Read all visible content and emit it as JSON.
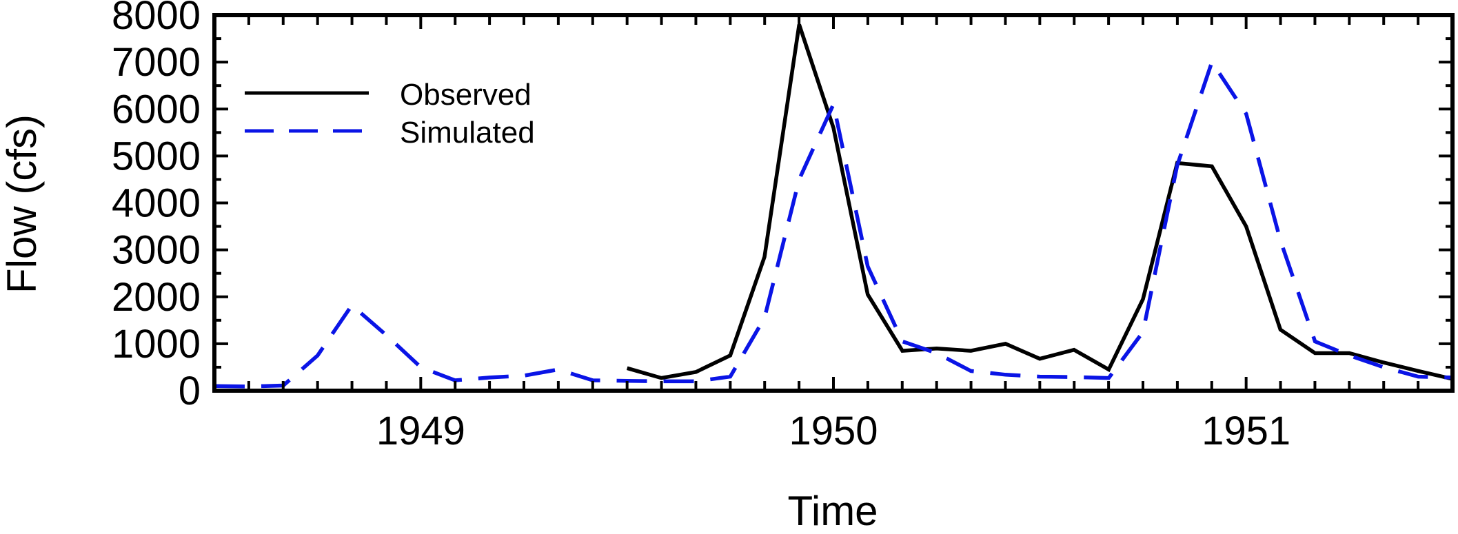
{
  "chart_data": {
    "type": "line",
    "title": "",
    "xlabel": "Time",
    "ylabel": "Flow (cfs)",
    "xlim": [
      1948.5,
      1951.5
    ],
    "ylim": [
      0,
      8000
    ],
    "y_ticks": [
      0,
      1000,
      2000,
      3000,
      4000,
      5000,
      6000,
      7000,
      8000
    ],
    "y_tick_labels": [
      "0",
      "1000",
      "2000",
      "3000",
      "4000",
      "5000",
      "6000",
      "7000",
      "8000"
    ],
    "x_ticks": [
      1949,
      1950,
      1951
    ],
    "x_tick_labels": [
      "1949",
      "1950",
      "1951"
    ],
    "grid": false,
    "legend_position": "top-left",
    "series": [
      {
        "name": "Observed",
        "color": "#000000",
        "dash": "solid",
        "x": [
          1949.5,
          1949.583,
          1949.667,
          1949.75,
          1949.833,
          1949.917,
          1950.0,
          1950.083,
          1950.167,
          1950.25,
          1950.333,
          1950.417,
          1950.5,
          1950.583,
          1950.667,
          1950.75,
          1950.833,
          1950.917,
          1951.0,
          1951.083,
          1951.167,
          1951.25,
          1951.333,
          1951.417,
          1951.5
        ],
        "y": [
          480,
          270,
          400,
          750,
          2850,
          7800,
          5600,
          2050,
          850,
          900,
          850,
          1000,
          680,
          870,
          450,
          1950,
          4850,
          4780,
          3500,
          1300,
          800,
          800,
          600,
          420,
          250
        ]
      },
      {
        "name": "Simulated",
        "color": "#0a14e6",
        "dash": "dashed",
        "x": [
          1948.5,
          1948.583,
          1948.667,
          1948.75,
          1948.833,
          1948.917,
          1949.0,
          1949.083,
          1949.167,
          1949.25,
          1949.333,
          1949.417,
          1949.5,
          1949.583,
          1949.667,
          1949.75,
          1949.833,
          1949.917,
          1950.0,
          1950.083,
          1950.167,
          1950.25,
          1950.333,
          1950.417,
          1950.5,
          1950.583,
          1950.667,
          1950.75,
          1950.833,
          1950.917,
          1951.0,
          1951.083,
          1951.167,
          1951.25,
          1951.333,
          1951.417,
          1951.5
        ],
        "y": [
          100,
          90,
          110,
          750,
          1820,
          1180,
          500,
          220,
          280,
          320,
          450,
          220,
          210,
          200,
          200,
          300,
          1550,
          4500,
          6100,
          2650,
          1050,
          800,
          420,
          340,
          300,
          290,
          270,
          1250,
          4800,
          7000,
          5900,
          3200,
          1050,
          750,
          500,
          300,
          280
        ]
      }
    ]
  }
}
